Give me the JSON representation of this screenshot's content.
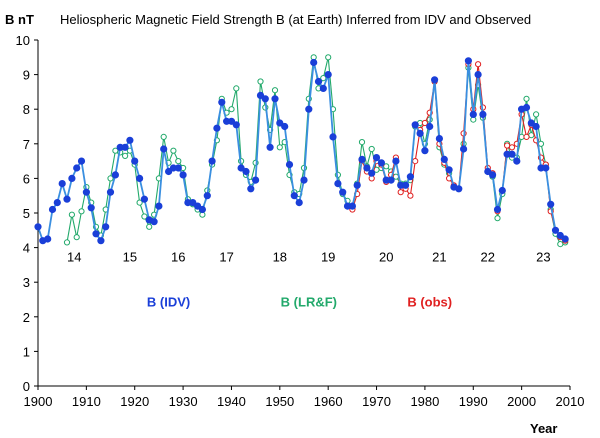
{
  "chart_data": {
    "type": "line",
    "title": "Heliospheric Magnetic Field Strength B (at Earth) Inferred from IDV and Observed",
    "ylabel": "B nT",
    "xlabel": "Year",
    "xlim": [
      1900,
      2010
    ],
    "ylim": [
      0,
      10
    ],
    "xticks": [
      1900,
      1910,
      1920,
      1930,
      1940,
      1950,
      1960,
      1970,
      1980,
      1990,
      2000,
      2010
    ],
    "yticks": [
      0,
      1,
      2,
      3,
      4,
      5,
      6,
      7,
      8,
      9,
      10
    ],
    "grid": false,
    "cycle_labels": [
      {
        "label": "14",
        "x": 1907.5,
        "y": 3.6
      },
      {
        "label": "15",
        "x": 1919,
        "y": 3.6
      },
      {
        "label": "16",
        "x": 1929,
        "y": 3.6
      },
      {
        "label": "17",
        "x": 1939,
        "y": 3.6
      },
      {
        "label": "18",
        "x": 1950,
        "y": 3.6
      },
      {
        "label": "19",
        "x": 1960,
        "y": 3.6
      },
      {
        "label": "20",
        "x": 1972,
        "y": 3.6
      },
      {
        "label": "21",
        "x": 1983,
        "y": 3.6
      },
      {
        "label": "22",
        "x": 1993,
        "y": 3.6
      },
      {
        "label": "23",
        "x": 2004.5,
        "y": 3.6
      }
    ],
    "series": [
      {
        "name": "B (IDV)",
        "color": "#1a3fd8",
        "line_color": "#3a8fe0",
        "marker": "filled",
        "legend_x": 1927,
        "legend_y": 2.3,
        "x": [
          1900,
          1901,
          1902,
          1903,
          1904,
          1905,
          1906,
          1907,
          1908,
          1909,
          1910,
          1911,
          1912,
          1913,
          1914,
          1915,
          1916,
          1917,
          1918,
          1919,
          1920,
          1921,
          1922,
          1923,
          1924,
          1925,
          1926,
          1927,
          1928,
          1929,
          1930,
          1931,
          1932,
          1933,
          1934,
          1935,
          1936,
          1937,
          1938,
          1939,
          1940,
          1941,
          1942,
          1943,
          1944,
          1945,
          1946,
          1947,
          1948,
          1949,
          1950,
          1951,
          1952,
          1953,
          1954,
          1955,
          1956,
          1957,
          1958,
          1959,
          1960,
          1961,
          1962,
          1963,
          1964,
          1965,
          1966,
          1967,
          1968,
          1969,
          1970,
          1971,
          1972,
          1973,
          1974,
          1975,
          1976,
          1977,
          1978,
          1979,
          1980,
          1981,
          1982,
          1983,
          1984,
          1985,
          1986,
          1987,
          1988,
          1989,
          1990,
          1991,
          1992,
          1993,
          1994,
          1995,
          1996,
          1997,
          1998,
          1999,
          2000,
          2001,
          2002,
          2003,
          2004,
          2005,
          2006,
          2007,
          2008,
          2009
        ],
        "values": [
          4.6,
          4.2,
          4.25,
          5.1,
          5.3,
          5.85,
          5.4,
          6.0,
          6.3,
          6.5,
          5.6,
          5.15,
          4.4,
          4.2,
          4.6,
          5.6,
          6.1,
          6.9,
          6.9,
          7.1,
          6.5,
          6.0,
          5.4,
          4.8,
          4.75,
          5.2,
          6.85,
          6.2,
          6.3,
          6.3,
          6.1,
          5.3,
          5.3,
          5.2,
          5.1,
          5.5,
          6.5,
          7.45,
          8.2,
          7.65,
          7.65,
          7.55,
          6.3,
          6.2,
          5.7,
          5.95,
          8.4,
          8.3,
          6.9,
          8.3,
          7.6,
          7.5,
          6.4,
          5.5,
          5.3,
          5.95,
          8.0,
          9.35,
          8.8,
          8.6,
          9.0,
          7.2,
          5.85,
          5.6,
          5.2,
          5.2,
          5.8,
          6.55,
          6.3,
          6.15,
          6.6,
          6.45,
          5.95,
          5.95,
          6.5,
          5.8,
          5.8,
          6.05,
          7.55,
          7.3,
          6.8,
          7.5,
          8.85,
          7.15,
          6.55,
          6.25,
          5.75,
          5.7,
          6.85,
          9.4,
          7.85,
          9.0,
          7.85,
          6.2,
          6.1,
          5.1,
          5.65,
          6.7,
          6.7,
          6.5,
          8.0,
          8.05,
          7.6,
          7.5,
          6.3,
          6.3,
          5.25,
          4.5,
          4.35,
          4.25
        ]
      },
      {
        "name": "B (LR&F)",
        "color": "#22a96b",
        "line_color": "#22a96b",
        "marker": "open",
        "legend_x": 1956,
        "legend_y": 2.3,
        "x": [
          1906,
          1907,
          1908,
          1909,
          1910,
          1911,
          1912,
          1913,
          1914,
          1915,
          1916,
          1917,
          1918,
          1919,
          1920,
          1921,
          1922,
          1923,
          1924,
          1925,
          1926,
          1927,
          1928,
          1929,
          1930,
          1931,
          1932,
          1933,
          1934,
          1935,
          1936,
          1937,
          1938,
          1939,
          1940,
          1941,
          1942,
          1943,
          1944,
          1945,
          1946,
          1947,
          1948,
          1949,
          1950,
          1951,
          1952,
          1953,
          1954,
          1955,
          1956,
          1957,
          1958,
          1959,
          1960,
          1961,
          1962,
          1963,
          1964,
          1965,
          1966,
          1967,
          1968,
          1969,
          1970,
          1971,
          1972,
          1973,
          1974,
          1975,
          1976,
          1977,
          1978,
          1979,
          1980,
          1981,
          1982,
          1983,
          1984,
          1985,
          1986,
          1987,
          1988,
          1989,
          1990,
          1991,
          1992,
          1993,
          1994,
          1995,
          1996,
          1997,
          1998,
          1999,
          2000,
          2001,
          2002,
          2003,
          2004,
          2005,
          2006,
          2007,
          2008,
          2009
        ],
        "values": [
          4.15,
          4.95,
          4.3,
          5.05,
          5.75,
          5.3,
          4.6,
          4.35,
          5.1,
          6.0,
          6.8,
          6.75,
          6.65,
          6.8,
          6.4,
          5.3,
          4.9,
          4.6,
          4.95,
          6.0,
          7.2,
          6.45,
          6.8,
          6.5,
          6.3,
          5.4,
          5.25,
          5.1,
          4.95,
          5.65,
          6.4,
          7.1,
          8.3,
          7.9,
          8.0,
          8.6,
          6.5,
          6.1,
          5.9,
          6.45,
          8.8,
          8.05,
          7.4,
          8.55,
          6.9,
          7.05,
          6.1,
          5.6,
          5.55,
          6.3,
          8.3,
          9.5,
          8.6,
          8.9,
          9.5,
          8.0,
          6.1,
          5.55,
          5.35,
          5.15,
          5.85,
          7.05,
          6.35,
          6.85,
          6.25,
          6.3,
          6.35,
          6.2,
          6.05,
          5.85,
          5.85,
          5.95,
          7.5,
          7.6,
          7.0,
          7.7,
          8.8,
          6.9,
          6.4,
          6.15,
          5.75,
          5.7,
          7.0,
          9.2,
          7.7,
          8.7,
          7.75,
          6.2,
          6.05,
          4.85,
          5.55,
          7.0,
          6.6,
          6.6,
          7.2,
          8.3,
          7.25,
          7.85,
          7.0,
          6.4,
          5.1,
          4.4,
          4.1,
          4.15
        ]
      },
      {
        "name": "B (obs)",
        "color": "#e02020",
        "line_color": "#e02020",
        "marker": "open",
        "legend_x": 1981,
        "legend_y": 2.3,
        "x": [
          1965,
          1966,
          1967,
          1968,
          1969,
          1970,
          1971,
          1972,
          1973,
          1974,
          1975,
          1976,
          1977,
          1978,
          1979,
          1980,
          1981,
          1982,
          1983,
          1984,
          1985,
          1986,
          1987,
          1988,
          1989,
          1990,
          1991,
          1992,
          1993,
          1994,
          1995,
          1996,
          1997,
          1998,
          1999,
          2000,
          2001,
          2002,
          2003,
          2004,
          2005,
          2006,
          2007,
          2008,
          2009
        ],
        "values": [
          5.1,
          5.55,
          6.5,
          6.2,
          6.0,
          6.5,
          6.4,
          5.9,
          6.1,
          6.6,
          5.6,
          5.7,
          5.5,
          6.5,
          7.4,
          7.6,
          7.9,
          8.8,
          7.0,
          6.45,
          6.0,
          5.8,
          5.7,
          7.3,
          9.3,
          8.0,
          9.3,
          8.05,
          6.3,
          6.15,
          5.05,
          5.65,
          6.95,
          6.9,
          7.0,
          7.85,
          7.2,
          7.55,
          7.1,
          6.6,
          6.4,
          5.05,
          4.5,
          4.3,
          4.2
        ]
      }
    ]
  }
}
